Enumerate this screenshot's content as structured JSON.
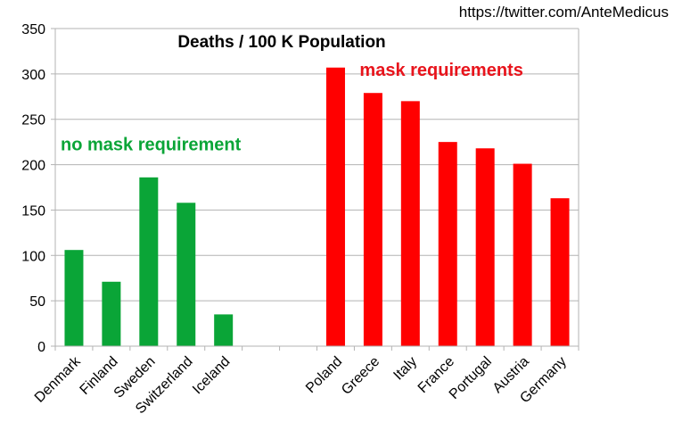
{
  "credit": "https://twitter.com/AnteMedicus",
  "chart_data": {
    "type": "bar",
    "title": "Deaths / 100 K Population",
    "xlabel": "",
    "ylabel": "",
    "ylim": [
      0,
      350
    ],
    "yticks": [
      0,
      50,
      100,
      150,
      200,
      250,
      300,
      350
    ],
    "grid": true,
    "categories": [
      "Denmark",
      "Finland",
      "Sweden",
      "Switzerland",
      "Iceland",
      "",
      "",
      "Poland",
      "Greece",
      "Italy",
      "France",
      "Portugal",
      "Austria",
      "Germany"
    ],
    "values": [
      106,
      71,
      186,
      158,
      35,
      null,
      null,
      307,
      279,
      270,
      225,
      218,
      201,
      163
    ],
    "groups": [
      "no_mask",
      "no_mask",
      "no_mask",
      "no_mask",
      "no_mask",
      "",
      "",
      "mask",
      "mask",
      "mask",
      "mask",
      "mask",
      "mask",
      "mask"
    ],
    "colors": {
      "no_mask": "#0aa537",
      "mask": "#ff0000",
      "grid": "#b3b3b3",
      "axis": "#b3b3b3",
      "text": "#000000"
    },
    "annotations": [
      {
        "text": "no mask requirement",
        "color": "#0aa537",
        "near_category": "Denmark",
        "at_value": 210
      },
      {
        "text": "mask requirements",
        "color": "#e8141c",
        "near_category": "Greece",
        "at_value": 292
      }
    ]
  }
}
